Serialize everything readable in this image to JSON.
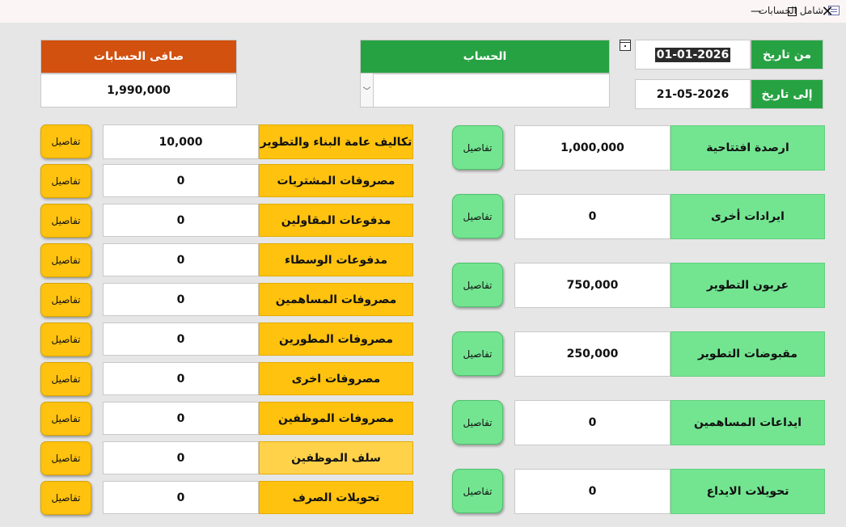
{
  "window": {
    "title": "شامل الحسابات",
    "minimize_glyph": "—",
    "close_glyph": "✕"
  },
  "filters": {
    "from_label": "من تاريخ",
    "from_value": "01-01-2026",
    "to_label": "إلى تاريخ",
    "to_value": "21-05-2026",
    "account_label": "الحساب",
    "account_value": "",
    "combo_arrow_glyph": "﹀"
  },
  "net": {
    "label": "صافى الحسابات",
    "value": "1,990,000"
  },
  "details_label": "تفاصيل",
  "expenses": [
    {
      "label": "تكاليف عامة البناء والتطوير",
      "value": "10,000"
    },
    {
      "label": "مصروفات المشتريات",
      "value": "0"
    },
    {
      "label": "مدفوعات المقاولين",
      "value": "0"
    },
    {
      "label": "مدفوعات الوسطاء",
      "value": "0"
    },
    {
      "label": "مصروفات المساهمين",
      "value": "0"
    },
    {
      "label": "مصروفات المطورين",
      "value": "0"
    },
    {
      "label": "مصروفات اخرى",
      "value": "0"
    },
    {
      "label": "مصروفات الموظفين",
      "value": "0"
    },
    {
      "label": "سلف الموظفين",
      "value": "0"
    },
    {
      "label": "تحويلات الصرف",
      "value": "0"
    }
  ],
  "income": [
    {
      "label": "ارصدة افتتاحية",
      "value": "1,000,000"
    },
    {
      "label": "ايرادات أخرى",
      "value": "0"
    },
    {
      "label": "عربون التطوير",
      "value": "750,000"
    },
    {
      "label": "مقبوضات التطوير",
      "value": "250,000"
    },
    {
      "label": "ايداعات المساهمين",
      "value": "0"
    },
    {
      "label": "تحويلات الايداع",
      "value": "0"
    }
  ],
  "colors": {
    "header_green": "#27a243",
    "header_orange": "#d2510f",
    "expense_yellow": "#ffc20f",
    "income_green": "#73e591"
  }
}
